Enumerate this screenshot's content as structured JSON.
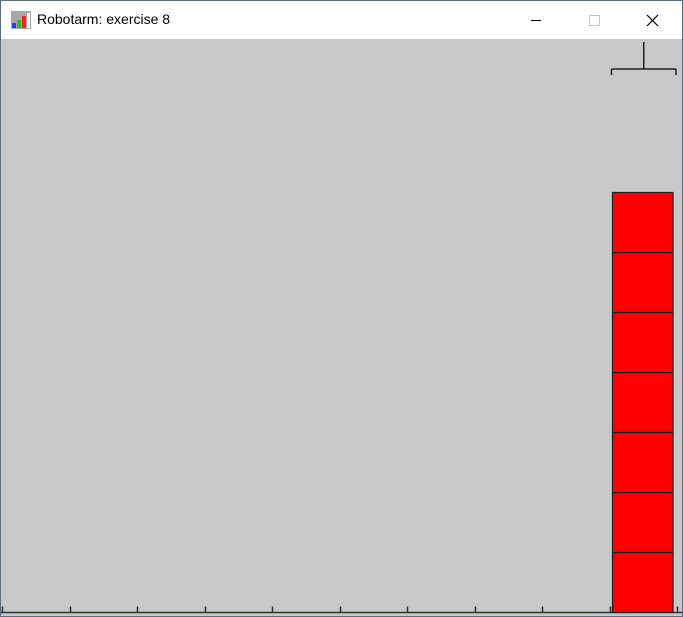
{
  "window": {
    "title": "Robotarm: exercise 8",
    "icons": {
      "app": "robotarm-app-icon",
      "minimize": "minimize-icon",
      "maximize": "maximize-icon",
      "close": "close-icon"
    }
  },
  "scene": {
    "background_color": "#c8c8c8",
    "floor_slots": 10,
    "arm_slot": 9,
    "stacks": [
      {
        "slot": 9,
        "blocks": [
          "#ff0000",
          "#ff0000",
          "#ff0000",
          "#ff0000",
          "#ff0000",
          "#ff0000",
          "#ff0000"
        ]
      }
    ]
  }
}
